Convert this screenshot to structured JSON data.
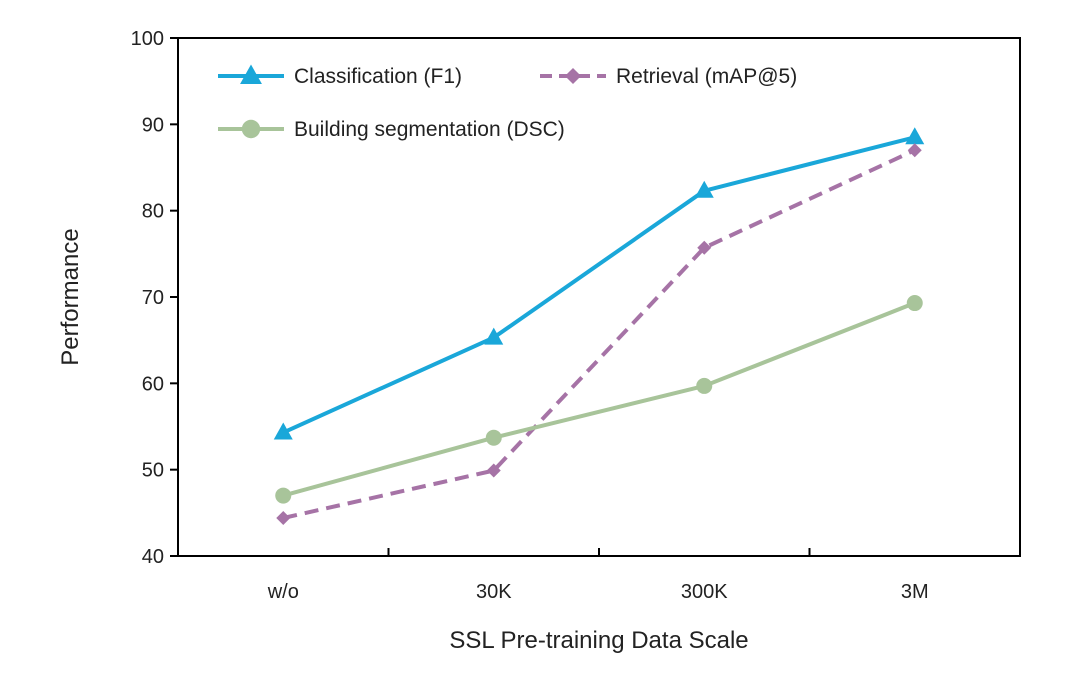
{
  "chart_data": {
    "type": "line",
    "categories": [
      "w/o",
      "30K",
      "300K",
      "3M"
    ],
    "series": [
      {
        "name": "Classification (F1)",
        "values": [
          54.3,
          65.3,
          82.3,
          88.5
        ],
        "color": "#1aa7d9",
        "marker": "triangle",
        "dash": "solid"
      },
      {
        "name": "Retrieval (mAP@5)",
        "values": [
          44.4,
          49.9,
          75.7,
          87.0
        ],
        "color": "#a673a6",
        "marker": "diamond",
        "dash": "dashed"
      },
      {
        "name": "Building segmentation (DSC)",
        "values": [
          47.0,
          53.7,
          59.7,
          69.3
        ],
        "color": "#a8c49a",
        "marker": "circle",
        "dash": "solid"
      }
    ],
    "xlabel": "SSL Pre-training Data Scale",
    "ylabel": "Performance",
    "ylim": [
      40,
      100
    ],
    "yticks": [
      40,
      50,
      60,
      70,
      80,
      90,
      100
    ],
    "grid": false,
    "legend_position": "top-left"
  }
}
